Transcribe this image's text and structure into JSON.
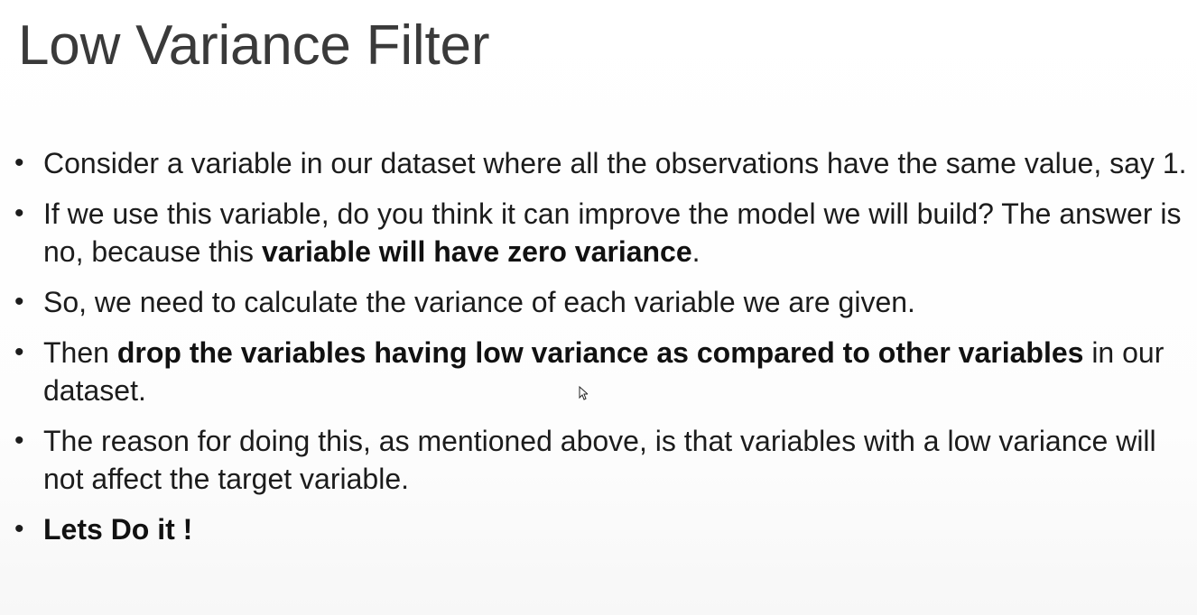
{
  "slide": {
    "title": "Low Variance Filter",
    "bullets": [
      {
        "marker": "•",
        "segments": [
          {
            "text": "Consider a variable in our dataset where all the observations have the same value, say 1.",
            "bold": false
          }
        ]
      },
      {
        "marker": "•",
        "segments": [
          {
            "text": "If we use this variable, do you think it can improve the model we will build? The answer is no, because this ",
            "bold": false
          },
          {
            "text": "variable will have zero variance",
            "bold": true
          },
          {
            "text": ".",
            "bold": false
          }
        ]
      },
      {
        "marker": "•",
        "segments": [
          {
            "text": "So, we need to calculate the variance of each variable we are given.",
            "bold": false
          }
        ]
      },
      {
        "marker": "•",
        "segments": [
          {
            "text": "Then ",
            "bold": false
          },
          {
            "text": "drop the variables having low variance as compared to other variables",
            "bold": true
          },
          {
            "text": " in our dataset.",
            "bold": false
          }
        ]
      },
      {
        "marker": "•",
        "segments": [
          {
            "text": "The reason for doing this, as mentioned above, is that variables with a low variance will not affect the target variable.",
            "bold": false
          }
        ]
      },
      {
        "marker": "•",
        "segments": [
          {
            "text": "Lets Do it !",
            "bold": true
          }
        ]
      }
    ]
  },
  "cursor": {
    "icon": "mouse-pointer-icon"
  }
}
